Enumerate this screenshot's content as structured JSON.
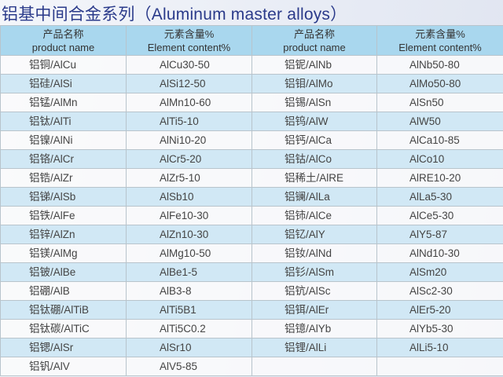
{
  "title": "铝基中间合金系列（Aluminum master alloys）",
  "headers": {
    "name_cn": "产品名称",
    "name_en": "product name",
    "content_cn": "元素含量%",
    "content_en": "Element content%"
  },
  "rows": [
    {
      "n1": "铝铜/AlCu",
      "v1": "AlCu30-50",
      "n2": "铝铌/AlNb",
      "v2": "AlNb50-80"
    },
    {
      "n1": "铝硅/AlSi",
      "v1": "AlSi12-50",
      "n2": "铝钼/AlMo",
      "v2": "AlMo50-80"
    },
    {
      "n1": "铝锰/AlMn",
      "v1": "AlMn10-60",
      "n2": "铝锡/AlSn",
      "v2": "AlSn50"
    },
    {
      "n1": "铝钛/AlTi",
      "v1": "AlTi5-10",
      "n2": "铝钨/AlW",
      "v2": "AlW50"
    },
    {
      "n1": "铝镍/AlNi",
      "v1": "AlNi10-20",
      "n2": "铝钙/AlCa",
      "v2": "AlCa10-85"
    },
    {
      "n1": "铝铬/AlCr",
      "v1": "AlCr5-20",
      "n2": "铝钴/AlCo",
      "v2": "AlCo10"
    },
    {
      "n1": "铝锆/AlZr",
      "v1": "AlZr5-10",
      "n2": "铝稀土/AlRE",
      "v2": "AlRE10-20"
    },
    {
      "n1": "铝锑/AlSb",
      "v1": "AlSb10",
      "n2": "铝镧/AlLa",
      "v2": "AlLa5-30"
    },
    {
      "n1": "铝铁/AlFe",
      "v1": "AlFe10-30",
      "n2": "铝铈/AlCe",
      "v2": "AlCe5-30"
    },
    {
      "n1": "铝锌/AlZn",
      "v1": "AlZn10-30",
      "n2": "铝钇/AlY",
      "v2": "AlY5-87"
    },
    {
      "n1": "铝镁/AlMg",
      "v1": "AlMg10-50",
      "n2": "铝钕/AlNd",
      "v2": "AlNd10-30"
    },
    {
      "n1": "铝铍/AlBe",
      "v1": "AlBe1-5",
      "n2": "铝钐/AlSm",
      "v2": "AlSm20"
    },
    {
      "n1": "铝硼/AlB",
      "v1": "AlB3-8",
      "n2": "铝钪/AlSc",
      "v2": "AlSc2-30"
    },
    {
      "n1": "铝钛硼/AlTiB",
      "v1": "AlTi5B1",
      "n2": "铝铒/AlEr",
      "v2": "AlEr5-20"
    },
    {
      "n1": "铝钛碳/AlTiC",
      "v1": "AlTi5C0.2",
      "n2": "铝镱/AlYb",
      "v2": "AlYb5-30"
    },
    {
      "n1": "铝锶/AlSr",
      "v1": "AlSr10",
      "n2": "铝锂/AlLi",
      "v2": "AlLi5-10"
    },
    {
      "n1": "铝钒/AlV",
      "v1": "AlV5-85",
      "n2": "",
      "v2": ""
    }
  ]
}
